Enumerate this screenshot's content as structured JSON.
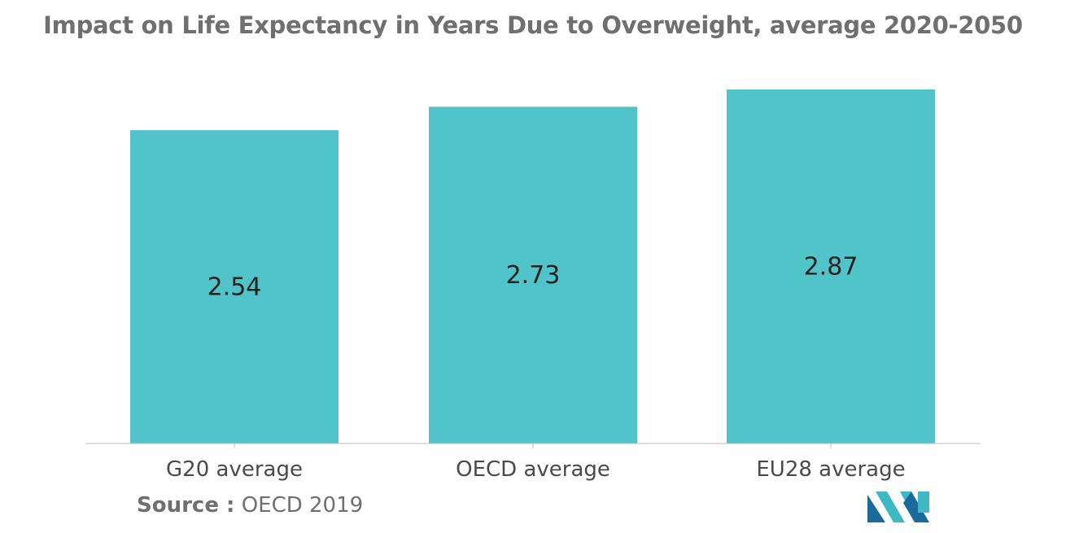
{
  "chart_data": {
    "type": "bar",
    "title": "Impact on Life Expectancy in Years Due to Overweight, average 2020-2050",
    "categories": [
      "G20 average",
      "OECD average",
      "EU28 average"
    ],
    "values": [
      2.54,
      2.73,
      2.87
    ],
    "value_labels": [
      "2.54",
      "2.73",
      "2.87"
    ],
    "xlabel": "",
    "ylabel": "",
    "ylim": [
      0,
      2.87
    ],
    "grid": false,
    "bar_color": "#51c4ca",
    "axis_color": "#bbbbbb"
  },
  "source": {
    "label": "Source :",
    "text": "OECD 2019"
  },
  "logo": {
    "icon": "mordor-intelligence-logo-icon",
    "colors": [
      "#1b6a9c",
      "#3fb8c3"
    ]
  }
}
